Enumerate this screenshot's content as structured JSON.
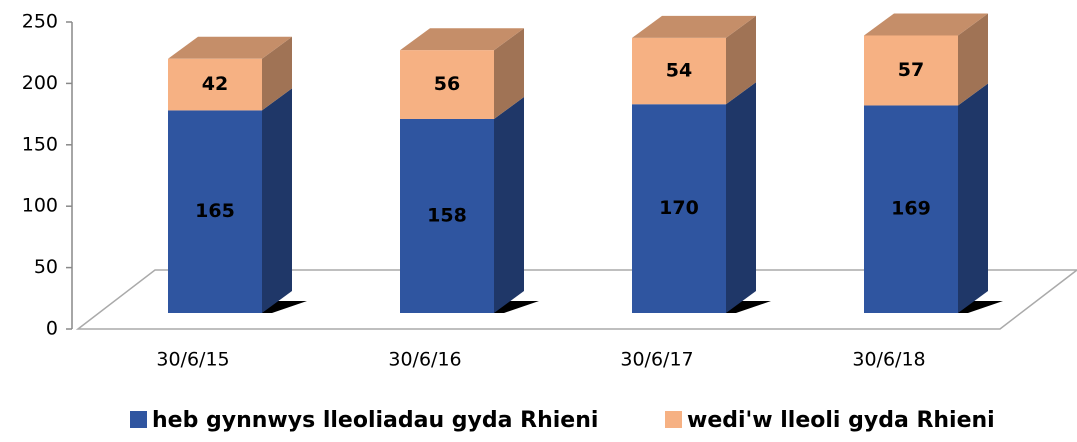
{
  "chart_data": {
    "type": "bar3d_stacked",
    "categories": [
      "30/6/15",
      "30/6/16",
      "30/6/17",
      "30/6/18"
    ],
    "series": [
      {
        "name": "heb gynnwys lleoliadau gyda Rhieni",
        "color": "#2f55a0",
        "values": [
          165,
          158,
          170,
          169
        ]
      },
      {
        "name": "wedi'w lleoli gyda Rhieni",
        "color": "#f6b183",
        "values": [
          42,
          56,
          54,
          57
        ]
      }
    ],
    "ylim": [
      0,
      250
    ],
    "yticks": [
      0,
      50,
      100,
      150,
      200,
      250
    ],
    "legend": "bottom"
  }
}
